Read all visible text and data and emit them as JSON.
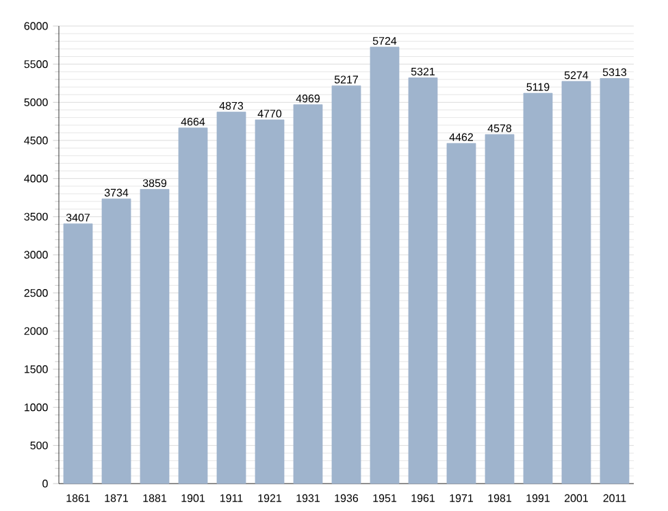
{
  "chart_data": {
    "type": "bar",
    "categories": [
      "1861",
      "1871",
      "1881",
      "1901",
      "1911",
      "1921",
      "1931",
      "1936",
      "1951",
      "1961",
      "1971",
      "1981",
      "1991",
      "2001",
      "2011"
    ],
    "values": [
      3407,
      3734,
      3859,
      4664,
      4873,
      4770,
      4969,
      5217,
      5724,
      5321,
      4462,
      4578,
      5119,
      5274,
      5313
    ],
    "color": "#9fb4cd",
    "ylim": [
      0,
      6000
    ],
    "yticks": [
      0,
      500,
      1000,
      1500,
      2000,
      2500,
      3000,
      3500,
      4000,
      4500,
      5000,
      5500,
      6000
    ],
    "grid": "y",
    "data_labels": true
  }
}
